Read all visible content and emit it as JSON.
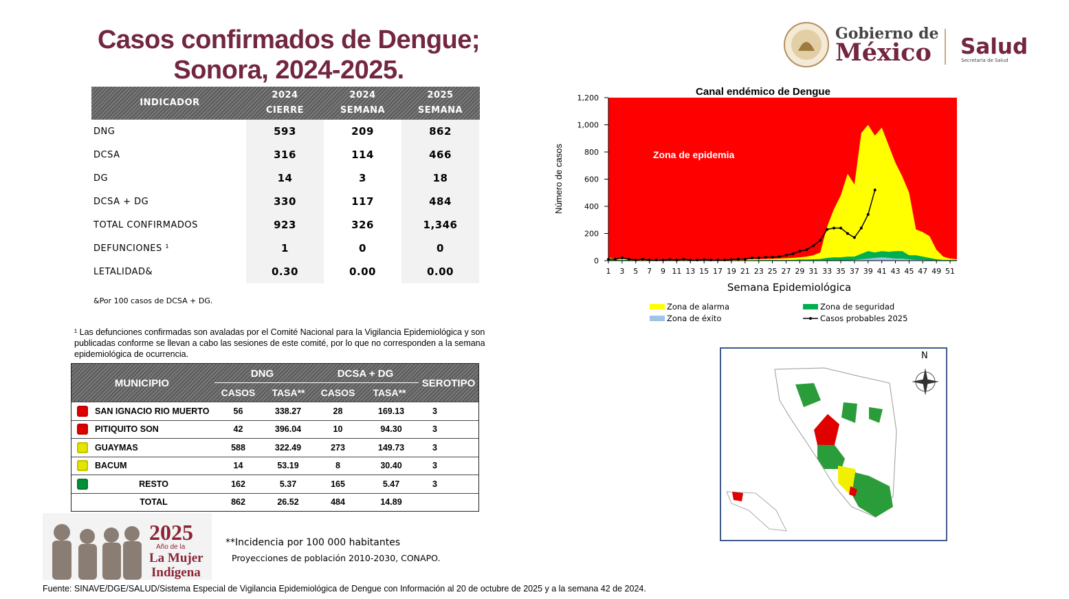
{
  "title": "Casos confirmados de Dengue;\nSonora, 2024-2025.",
  "logo": {
    "gobierno": "Gobierno de",
    "mexico": "México",
    "salud": "Salud",
    "secretaria": "Secretaría de Salud"
  },
  "table1": {
    "headers": [
      "INDICADOR",
      "2024\nCIERRE",
      "2024\nSEMANA",
      "2025\nSEMANA"
    ],
    "rows": [
      [
        "DNG",
        "593",
        "209",
        "862"
      ],
      [
        "DCSA",
        "316",
        "114",
        "466"
      ],
      [
        "DG",
        "14",
        "3",
        "18"
      ],
      [
        "DCSA + DG",
        "330",
        "117",
        "484"
      ],
      [
        "TOTAL CONFIRMADOS",
        "923",
        "326",
        "1,346"
      ],
      [
        "DEFUNCIONES ¹",
        "1",
        "0",
        "0"
      ],
      [
        "LETALIDAD&",
        "0.30",
        "0.00",
        "0.00"
      ]
    ],
    "note": "&Por 100 casos de DCSA + DG."
  },
  "footnote": "¹ Las defunciones confirmadas son avaladas por el Comité Nacional para la Vigilancia Epidemiológica y son publicadas conforme se llevan a cabo las sesiones de este comité, por lo que no corresponden a la semana epidemiológica de ocurrencia.",
  "table2": {
    "municipio": "MUNICIPIO",
    "dng": "DNG",
    "dcsa": "DCSA + DG",
    "serotipo": "SEROTIPO",
    "subheaders": [
      "CASOS",
      "TASA**",
      "CASOS",
      "TASA**"
    ],
    "rows": [
      {
        "color": "#e00000",
        "cells": [
          "SAN IGNACIO RIO MUERTO",
          "56",
          "338.27",
          "28",
          "169.13",
          "3"
        ]
      },
      {
        "color": "#e00000",
        "cells": [
          "PITIQUITO SON",
          "42",
          "396.04",
          "10",
          "94.30",
          "3"
        ]
      },
      {
        "color": "#e6e600",
        "cells": [
          "GUAYMAS",
          "588",
          "322.49",
          "273",
          "149.73",
          "3"
        ]
      },
      {
        "color": "#e6e600",
        "cells": [
          "BACUM",
          "14",
          "53.19",
          "8",
          "30.40",
          "3"
        ]
      },
      {
        "color": "#00913a",
        "cells": [
          "RESTO",
          "162",
          "5.37",
          "165",
          "5.47",
          "3"
        ]
      },
      {
        "cells": [
          "TOTAL",
          "862",
          "26.52",
          "484",
          "14.89"
        ]
      }
    ]
  },
  "badge": {
    "year": "2025",
    "line1": "Año de la",
    "line2": "La Mujer",
    "line3": "Indígena"
  },
  "incidencia": "**Incidencia por 100 000 habitantes",
  "proyecciones": "Proyecciones de población 2010-2030,  CONAPO.",
  "fuente": "Fuente: SINAVE/DGE/SALUD/Sistema Especial de Vigilancia Epidemiológica de Dengue con Información al 20 de octubre de 2025 y a la semana 42 de 2024.",
  "map": {
    "north": "N"
  },
  "chart_data": {
    "type": "area",
    "title": "Canal endémico de Dengue",
    "x_label": "Semana Epidemiológica",
    "y_label": "Número de casos",
    "annotation": "Zona de epidemia",
    "plot_background": "#ff0000",
    "x": [
      1,
      2,
      3,
      4,
      5,
      6,
      7,
      8,
      9,
      10,
      11,
      12,
      13,
      14,
      15,
      16,
      17,
      18,
      19,
      20,
      21,
      22,
      23,
      24,
      25,
      26,
      27,
      28,
      29,
      30,
      31,
      32,
      33,
      34,
      35,
      36,
      37,
      38,
      39,
      40,
      41,
      42,
      43,
      44,
      45,
      46,
      47,
      48,
      49,
      50,
      51,
      52
    ],
    "xlim": [
      1,
      52
    ],
    "xticks": [
      1,
      3,
      5,
      7,
      9,
      11,
      13,
      15,
      17,
      19,
      21,
      23,
      25,
      27,
      29,
      31,
      33,
      35,
      37,
      39,
      41,
      43,
      45,
      47,
      49,
      51
    ],
    "ylim": [
      0,
      1200
    ],
    "yticks": [
      0,
      200,
      400,
      600,
      {
        "value": 800,
        "label": "800"
      },
      {
        "value": 1000,
        "label": "1,000"
      },
      {
        "value": 1200,
        "label": "1,200"
      }
    ],
    "series": [
      {
        "name": "Zona de alarma",
        "color": "#ffff00",
        "kind": "area",
        "values": [
          20,
          15,
          15,
          10,
          10,
          10,
          10,
          10,
          10,
          10,
          10,
          10,
          10,
          10,
          10,
          10,
          10,
          10,
          10,
          10,
          10,
          12,
          12,
          12,
          14,
          15,
          18,
          20,
          25,
          30,
          40,
          60,
          250,
          380,
          480,
          640,
          560,
          940,
          1000,
          920,
          980,
          850,
          720,
          620,
          500,
          230,
          210,
          180,
          80,
          30,
          15,
          10
        ]
      },
      {
        "name": "Zona de seguridad",
        "color": "#00b050",
        "kind": "area",
        "values": [
          5,
          5,
          5,
          5,
          3,
          3,
          3,
          3,
          3,
          3,
          3,
          3,
          3,
          3,
          3,
          3,
          3,
          3,
          3,
          3,
          3,
          3,
          5,
          5,
          5,
          5,
          5,
          5,
          8,
          8,
          10,
          12,
          20,
          25,
          25,
          30,
          30,
          50,
          70,
          60,
          70,
          65,
          70,
          70,
          40,
          40,
          30,
          20,
          10,
          5,
          5,
          5
        ]
      },
      {
        "name": "Zona de éxito",
        "color": "#9dc3e6",
        "kind": "area",
        "values": [
          0,
          0,
          0,
          0,
          0,
          0,
          0,
          0,
          0,
          0,
          0,
          0,
          0,
          0,
          0,
          0,
          0,
          0,
          0,
          0,
          0,
          0,
          0,
          0,
          0,
          0,
          0,
          0,
          0,
          0,
          0,
          0,
          0,
          0,
          0,
          0,
          5,
          10,
          15,
          20,
          25,
          20,
          15,
          15,
          10,
          5,
          5,
          0,
          0,
          0,
          0,
          0
        ]
      },
      {
        "name": "Casos probables 2025",
        "color": "#000000",
        "kind": "line",
        "values": [
          10,
          10,
          20,
          10,
          5,
          10,
          5,
          5,
          5,
          8,
          5,
          10,
          5,
          5,
          8,
          5,
          5,
          5,
          8,
          10,
          10,
          20,
          20,
          25,
          25,
          30,
          40,
          50,
          70,
          80,
          110,
          150,
          230,
          240,
          240,
          200,
          170,
          240,
          340,
          520,
          null,
          null,
          null,
          null,
          null,
          null,
          null,
          null,
          null,
          null,
          null,
          null
        ]
      }
    ]
  }
}
